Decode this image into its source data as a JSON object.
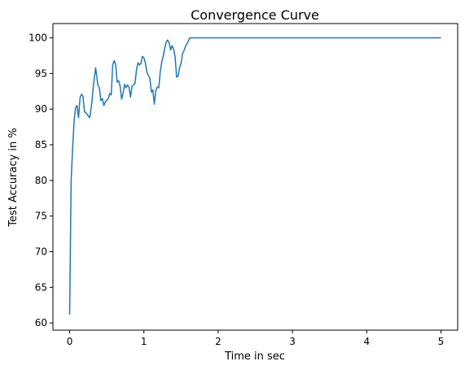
{
  "chart_data": {
    "type": "line",
    "title": "Convergence Curve",
    "xlabel": "Time in sec",
    "ylabel": "Test Accuracy in %",
    "xlim": [
      -0.225,
      5.225
    ],
    "ylim": [
      59.0,
      102.0
    ],
    "x_ticks": [
      0,
      1,
      2,
      3,
      4,
      5
    ],
    "y_ticks": [
      60,
      65,
      70,
      75,
      80,
      85,
      90,
      95,
      100
    ],
    "grid": false,
    "series": [
      {
        "color": "#1f77b4",
        "x": [
          0.0,
          0.02,
          0.04,
          0.06,
          0.08,
          0.1,
          0.12,
          0.14,
          0.16,
          0.18,
          0.2,
          0.22,
          0.24,
          0.27,
          0.3,
          0.32,
          0.35,
          0.38,
          0.4,
          0.42,
          0.44,
          0.46,
          0.48,
          0.5,
          0.52,
          0.54,
          0.56,
          0.58,
          0.6,
          0.62,
          0.64,
          0.66,
          0.68,
          0.7,
          0.72,
          0.74,
          0.76,
          0.78,
          0.8,
          0.82,
          0.84,
          0.86,
          0.88,
          0.9,
          0.92,
          0.94,
          0.96,
          0.98,
          1.0,
          1.02,
          1.04,
          1.06,
          1.08,
          1.1,
          1.12,
          1.14,
          1.16,
          1.18,
          1.2,
          1.22,
          1.24,
          1.26,
          1.28,
          1.3,
          1.32,
          1.34,
          1.36,
          1.38,
          1.4,
          1.42,
          1.44,
          1.46,
          1.48,
          1.5,
          1.52,
          1.54,
          1.56,
          1.58,
          1.6,
          1.62,
          1.64,
          1.66,
          1.68,
          1.7,
          1.72,
          1.74,
          1.76,
          1.78,
          1.8,
          1.82,
          1.84,
          1.86,
          1.88,
          1.9,
          1.92,
          1.94,
          1.96,
          1.98,
          2.0,
          2.02,
          2.04,
          2.06,
          2.08,
          2.1,
          2.12,
          2.15,
          2.18,
          2.2,
          2.22,
          2.3,
          2.5,
          3.0,
          3.5,
          4.0,
          4.5,
          5.0
        ],
        "y": [
          61.2,
          80.0,
          84.5,
          88.3,
          90.2,
          90.5,
          88.8,
          91.6,
          92.1,
          91.8,
          89.6,
          89.5,
          89.2,
          88.8,
          91.0,
          93.3,
          95.8,
          93.4,
          93.0,
          91.2,
          91.5,
          90.5,
          91.0,
          91.2,
          91.5,
          92.2,
          92.0,
          96.2,
          96.8,
          96.2,
          93.8,
          94.0,
          93.2,
          91.4,
          92.2,
          93.5,
          93.0,
          93.4,
          93.0,
          91.7,
          93.2,
          93.4,
          93.6,
          95.5,
          96.5,
          96.2,
          96.4,
          97.4,
          97.2,
          96.5,
          95.2,
          94.7,
          94.4,
          92.4,
          92.7,
          90.7,
          92.6,
          93.1,
          93.0,
          95.2,
          96.6,
          97.4,
          98.5,
          99.4,
          99.7,
          99.3,
          98.3,
          98.9,
          98.4,
          97.4,
          94.5,
          94.6,
          95.8,
          96.4,
          97.8,
          98.2,
          98.8,
          99.2,
          99.6,
          100.0,
          100.0,
          100.0,
          100.0,
          100.0,
          100.0,
          100.0,
          100.0,
          100.0,
          100.0,
          100.0,
          100.0,
          100.0,
          100.0,
          100.0,
          100.0,
          100.0,
          100.0,
          100.0,
          100.0,
          100.0,
          100.0,
          100.0,
          100.0,
          100.0,
          100.0,
          100.0,
          100.0,
          100.0,
          100.0,
          100.0,
          100.0,
          100.0,
          100.0,
          100.0,
          100.0,
          100.0
        ]
      }
    ]
  }
}
